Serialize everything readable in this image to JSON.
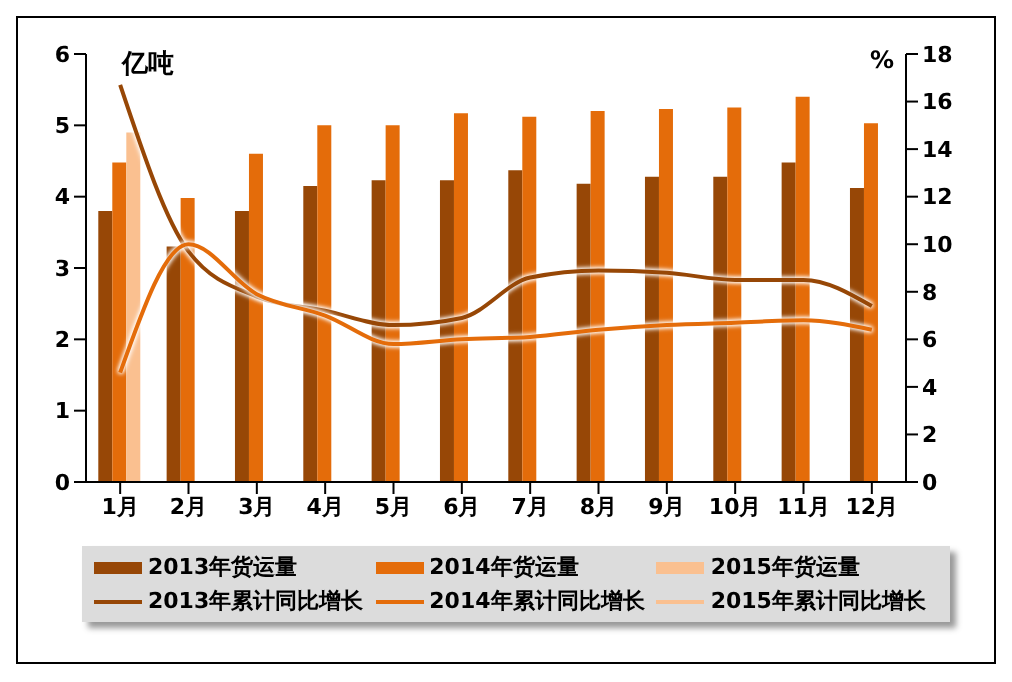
{
  "chart_data": {
    "type": "bar",
    "ylabel": "亿吨",
    "y2label": "%",
    "categories": [
      "1月",
      "2月",
      "3月",
      "4月",
      "5月",
      "6月",
      "7月",
      "8月",
      "9月",
      "10月",
      "11月",
      "12月"
    ],
    "series": [
      {
        "name": "2013年货运量",
        "color": "#974706",
        "values": [
          3.8,
          3.3,
          3.8,
          4.15,
          4.23,
          4.23,
          4.37,
          4.18,
          4.28,
          4.28,
          4.48,
          4.12
        ]
      },
      {
        "name": "2014年货运量",
        "color": "#e46c0a",
        "values": [
          4.48,
          3.98,
          4.6,
          5.0,
          5.0,
          5.17,
          5.12,
          5.2,
          5.23,
          5.25,
          5.4,
          5.03
        ]
      },
      {
        "name": "2015年货运量",
        "color": "#fac090",
        "values": [
          4.9,
          null,
          null,
          null,
          null,
          null,
          null,
          null,
          null,
          null,
          null,
          null
        ]
      },
      {
        "name": "2013年累计同比增长",
        "type": "line",
        "axis": "y2",
        "color": "#974706",
        "values": [
          16.7,
          9.7,
          7.8,
          7.2,
          6.6,
          6.9,
          8.6,
          8.9,
          8.8,
          8.5,
          8.5,
          7.4
        ]
      },
      {
        "name": "2014年累计同比增长",
        "type": "line",
        "axis": "y2",
        "color": "#e46c0a",
        "values": [
          4.6,
          10.0,
          7.9,
          7.0,
          5.8,
          6.0,
          6.1,
          6.4,
          6.6,
          6.7,
          6.8,
          6.4
        ]
      },
      {
        "name": "2015年累计同比增长",
        "type": "line",
        "axis": "y2",
        "color": "#fac090",
        "values": [
          null,
          null,
          null,
          null,
          null,
          null,
          null,
          null,
          null,
          null,
          null,
          null
        ]
      }
    ],
    "ylim": [
      0,
      6
    ],
    "yticks": [
      0,
      1,
      2,
      3,
      4,
      5,
      6
    ],
    "y2lim": [
      0,
      18
    ],
    "y2ticks": [
      0,
      2,
      4,
      6,
      8,
      10,
      12,
      14,
      16,
      18
    ],
    "grid": false,
    "legend": "bottom",
    "marker": "none"
  }
}
